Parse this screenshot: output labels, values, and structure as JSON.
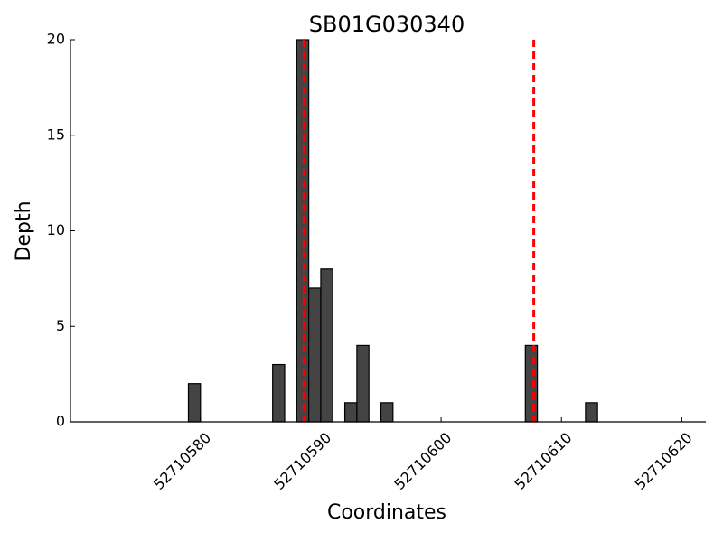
{
  "chart_data": {
    "type": "bar",
    "title": "SB01G030340",
    "x_label": "Coordinates",
    "y_label": "Depth",
    "x": [
      52710579.5,
      52710586.5,
      52710588.5,
      52710589.5,
      52710590.5,
      52710592.5,
      52710593.5,
      52710595.5,
      52710607.5,
      52710612.5
    ],
    "values": [
      2,
      3,
      20,
      7,
      8,
      1,
      4,
      1,
      4,
      1
    ],
    "color": "#444444",
    "xlim": [
      52710569.2,
      52710622
    ],
    "xticks": [
      52710580,
      52710590,
      52710600,
      52710610,
      52710620
    ],
    "ylim": [
      0,
      20
    ],
    "yticks": [
      0,
      5,
      10,
      15,
      20
    ],
    "vlines": [
      52710588.6,
      52710607.7
    ],
    "vline_color": "#ff0000"
  }
}
